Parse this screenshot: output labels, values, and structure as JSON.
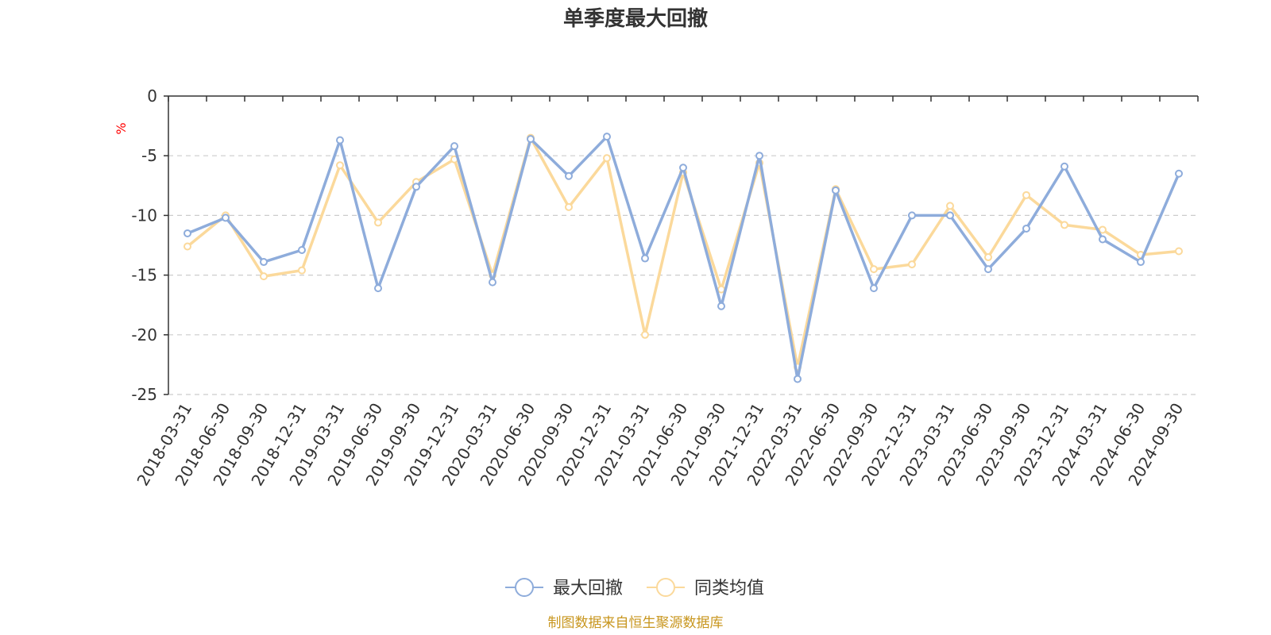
{
  "chart_data": {
    "type": "line",
    "title": "单季度最大回撤",
    "ylabel": "%",
    "xlabel": "",
    "ylim": [
      -25,
      0
    ],
    "yticks": [
      0,
      -5,
      -10,
      -15,
      -20,
      -25
    ],
    "categories": [
      "2018-03-31",
      "2018-06-30",
      "2018-09-30",
      "2018-12-31",
      "2019-03-31",
      "2019-06-30",
      "2019-09-30",
      "2019-12-31",
      "2020-03-31",
      "2020-06-30",
      "2020-09-30",
      "2020-12-31",
      "2021-03-31",
      "2021-06-30",
      "2021-09-30",
      "2021-12-31",
      "2022-03-31",
      "2022-06-30",
      "2022-09-30",
      "2022-12-31",
      "2023-03-31",
      "2023-06-30",
      "2023-09-30",
      "2023-12-31",
      "2024-03-31",
      "2024-06-30",
      "2024-09-30"
    ],
    "series": [
      {
        "name": "最大回撤",
        "color": "#8eacdb",
        "values": [
          -11.5,
          -10.2,
          -13.9,
          -12.9,
          -3.7,
          -16.1,
          -7.6,
          -4.2,
          -15.6,
          -3.6,
          -6.7,
          -3.4,
          -13.6,
          -6.0,
          -17.6,
          -5.0,
          -23.7,
          -7.9,
          -16.1,
          -10.0,
          -10.0,
          -14.5,
          -11.1,
          -5.9,
          -12.0,
          -13.9,
          -6.5
        ]
      },
      {
        "name": "同类均值",
        "color": "#fbd99b",
        "values": [
          -12.6,
          -10.0,
          -15.1,
          -14.6,
          -5.8,
          -10.6,
          -7.2,
          -5.3,
          -15.0,
          -3.5,
          -9.3,
          -5.2,
          -20.0,
          -6.4,
          -16.2,
          -5.6,
          -22.7,
          -7.8,
          -14.5,
          -14.1,
          -9.2,
          -13.5,
          -8.3,
          -10.8,
          -11.2,
          -13.3,
          -13.0
        ]
      }
    ],
    "legend_position": "bottom-center",
    "grid": true
  },
  "source_text": "制图数据来自恒生聚源数据库",
  "colors": {
    "axis": "#333333",
    "grid": "#cccccc",
    "unit": "#ff0000",
    "source": "#c8961e"
  }
}
